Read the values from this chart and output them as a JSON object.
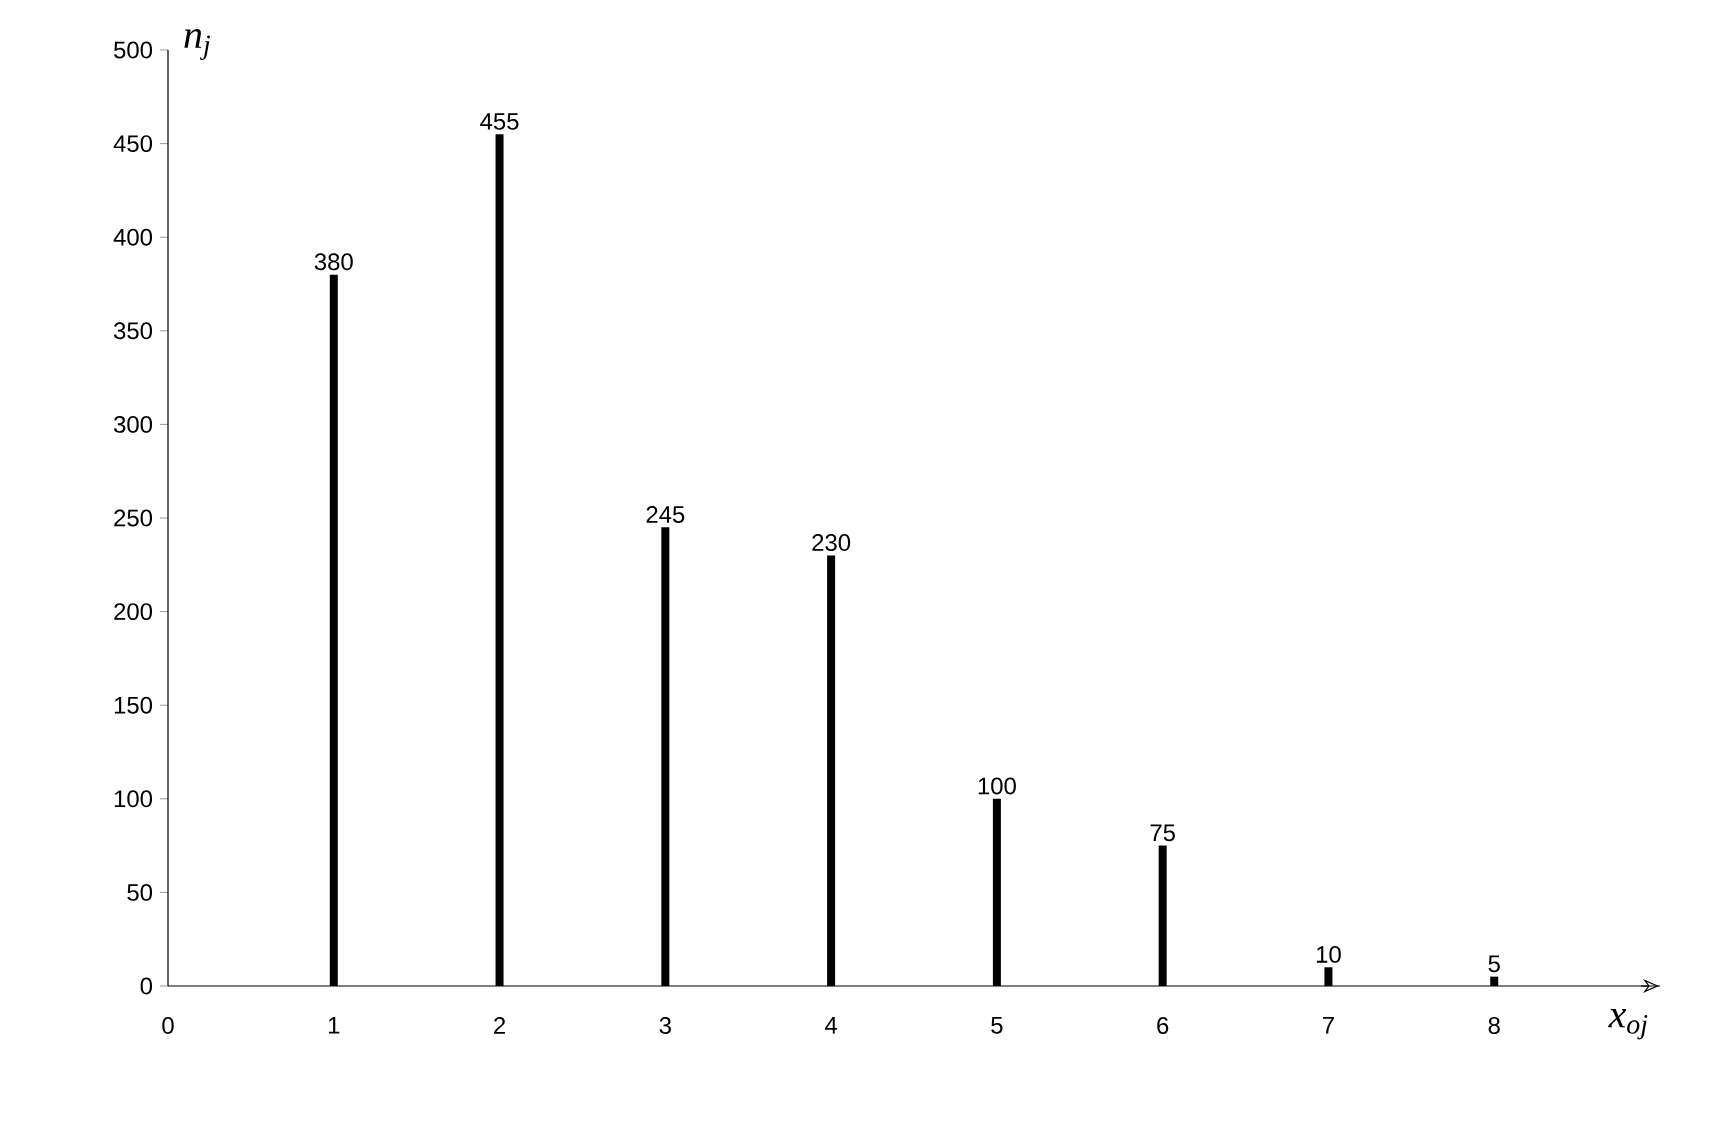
{
  "chart_data": {
    "type": "bar",
    "xlabel": "x$_{oj}$",
    "ylabel": "n$_{j}$",
    "x": [
      1,
      2,
      3,
      4,
      5,
      6,
      7,
      8
    ],
    "values": [
      380,
      455,
      245,
      230,
      100,
      75,
      10,
      5
    ],
    "color": "#000000",
    "xlim": [
      0,
      9
    ],
    "ylim": [
      0,
      500
    ],
    "xticks": [
      0,
      1,
      2,
      3,
      4,
      5,
      6,
      7,
      8
    ],
    "yticks": [
      0,
      50,
      100,
      150,
      200,
      250,
      300,
      350,
      400,
      450,
      500
    ],
    "data_labels": true
  }
}
